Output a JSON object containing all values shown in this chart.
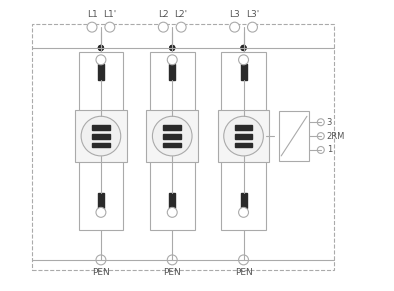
{
  "bg_color": "#ffffff",
  "line_color": "#aaaaaa",
  "dark_color": "#2a2a2a",
  "text_color": "#555555",
  "fig_width": 3.94,
  "fig_height": 2.91,
  "dpi": 100,
  "labels_L": [
    [
      "L1",
      "L1'"
    ],
    [
      "L2",
      "L2'"
    ],
    [
      "L3",
      "L3'"
    ]
  ],
  "remote_labels": [
    "3",
    "2RM",
    "1"
  ]
}
